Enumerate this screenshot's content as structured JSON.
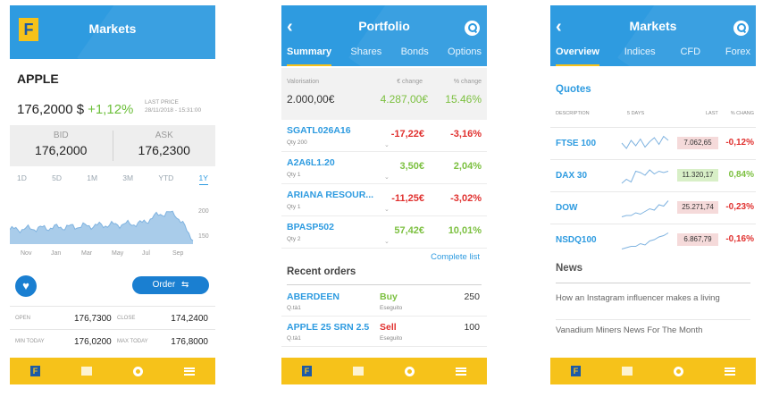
{
  "markets_detail": {
    "title": "Markets",
    "logo": "F",
    "symbol": "APPLE",
    "price": "176,2000 $",
    "change": "+1,12%",
    "last_price_label": "LAST PRICE",
    "last_price_time": "28/11/2018 - 15:31:00",
    "bid_label": "BID",
    "bid_value": "176,2000",
    "ask_label": "ASK",
    "ask_value": "176,2300",
    "ranges": [
      "1D",
      "5D",
      "1M",
      "3M",
      "YTD",
      "1Y"
    ],
    "active_range": "1Y",
    "chart_months": [
      "Nov",
      "Jan",
      "Mar",
      "May",
      "Jul",
      "Sep"
    ],
    "chart_y_ticks": [
      "200",
      "150"
    ],
    "order_label": "Order",
    "stats": {
      "open_label": "OPEN",
      "open_value": "176,7300",
      "close_label": "CLOSE",
      "close_value": "174,2400",
      "min_label": "MIN TODAY",
      "min_value": "176,0200",
      "max_label": "MAX TODAY",
      "max_value": "176,8000"
    }
  },
  "portfolio": {
    "title": "Portfolio",
    "tabs": [
      "Summary",
      "Shares",
      "Bonds",
      "Options"
    ],
    "active_tab": "Summary",
    "valorisation_label": "Valorisation",
    "valorisation_value": "2.000,00€",
    "change_label": "€ change",
    "change_value": "4.287,00€",
    "pct_change_label": "% change",
    "pct_change_value": "15.46%",
    "positions": [
      {
        "name": "SGATL026A16",
        "qty": "Qty 200",
        "change": "-17,22€",
        "pct": "-3,16%",
        "dir": "neg"
      },
      {
        "name": "A2A6L1.20",
        "qty": "Qty 1",
        "change": "3,50€",
        "pct": "2,04%",
        "dir": "pos"
      },
      {
        "name": "ARIANA RESOUR...",
        "qty": "Qty 1",
        "change": "-11,25€",
        "pct": "-3,02%",
        "dir": "neg"
      },
      {
        "name": "BPASP502",
        "qty": "Qty 2",
        "change": "57,42€",
        "pct": "10,01%",
        "dir": "pos"
      }
    ],
    "complete_list": "Complete list",
    "recent_orders_title": "Recent orders",
    "orders": [
      {
        "name": "ABERDEEN",
        "qty": "Q.tà1",
        "side": "Buy",
        "status": "Eseguito",
        "amount": "250"
      },
      {
        "name": "APPLE 25 SRN 2.5",
        "qty": "Q.tà1",
        "side": "Sell",
        "status": "Eseguito",
        "amount": "100"
      }
    ]
  },
  "markets_overview": {
    "title": "Markets",
    "tabs": [
      "Overview",
      "Indices",
      "CFD",
      "Forex"
    ],
    "active_tab": "Overview",
    "quotes_title": "Quotes",
    "col_description": "DESCRIPTION",
    "col_5days": "5 DAYS",
    "col_last": "LAST",
    "col_change": "% CHANG",
    "quotes": [
      {
        "name": "FTSE 100",
        "last": "7.062,65",
        "pct": "-0,12%",
        "dir": "neg",
        "spark": [
          6,
          10,
          4,
          8,
          3,
          9,
          5,
          2,
          7,
          1,
          4
        ]
      },
      {
        "name": "DAX 30",
        "last": "11.320,17",
        "pct": "0,84%",
        "dir": "pos",
        "spark": [
          12,
          9,
          11,
          3,
          4,
          6,
          2,
          5,
          3,
          4,
          3
        ]
      },
      {
        "name": "DOW",
        "last": "25.271,74",
        "pct": "-0,23%",
        "dir": "neg",
        "spark": [
          13,
          12,
          12,
          10,
          11,
          9,
          7,
          8,
          4,
          5,
          1
        ]
      },
      {
        "name": "NSDQ100",
        "last": "6.867,79",
        "pct": "-0,16%",
        "dir": "neg",
        "spark": [
          13,
          12,
          11,
          11,
          9,
          10,
          7,
          6,
          4,
          3,
          1
        ]
      }
    ],
    "news_title": "News",
    "news": [
      "How an Instagram influencer makes a living",
      "Vanadium Miners News For The Month"
    ]
  },
  "colors": {
    "header": "#2e9be0",
    "accent": "#f6c21a",
    "positive": "#7cc040",
    "negative": "#e0302e"
  },
  "icons": [
    "back-chevron-icon",
    "search-icon",
    "heart-icon",
    "transfer-arrows-icon",
    "home-icon",
    "chart-icon",
    "donut-icon",
    "menu-icon"
  ]
}
